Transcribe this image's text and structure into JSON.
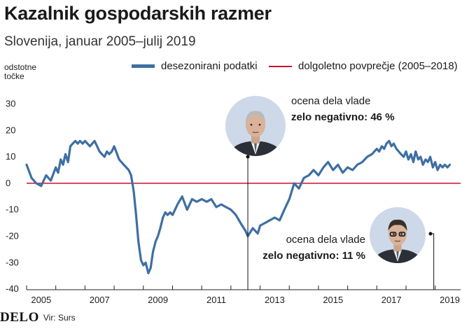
{
  "header": {
    "title": "Kazalnik gospodarskih razmer",
    "subtitle": "Slovenija, januar 2005–julij 2019",
    "unit_line1": "odstotne",
    "unit_line2": "točke"
  },
  "footer": {
    "logo": "DELO",
    "source": "Vir: Surs"
  },
  "colors": {
    "series": "#3e6fa3",
    "average": "#c8102e",
    "axis": "#222222",
    "photo_bg": "#cdd9e8"
  },
  "annotations": [
    {
      "line1": "ocena dela vlade",
      "line2": "zelo negativno: 46 %",
      "year": 2012.58,
      "photo": "portrait-janez-jansa"
    },
    {
      "line1": "ocena dela vlade",
      "line2": "zelo negativno: 11 %",
      "year": 2018.95,
      "photo": "portrait-marjan-sarec"
    }
  ],
  "chart_data": {
    "type": "line",
    "title": "Kazalnik gospodarskih razmer",
    "subtitle": "Slovenija, januar 2005–julij 2019",
    "ylabel": "odstotne točke",
    "ylim": [
      -45,
      37
    ],
    "xlim": [
      2005.0,
      2019.75
    ],
    "yticks": [
      30,
      20,
      10,
      0,
      -10,
      -20,
      -30,
      -40
    ],
    "xticks": [
      "2005",
      "2007",
      "2009",
      "2011",
      "2013",
      "2015",
      "2017",
      "2019"
    ],
    "legend": [
      {
        "name": "desezonirani podatki",
        "kind": "line"
      },
      {
        "name": "dolgoletno povprečje (2005–2018)",
        "kind": "thin-line"
      }
    ],
    "legend_position": "top-right",
    "grid": false,
    "average": 0,
    "series": [
      {
        "name": "desezonirani podatki",
        "x": [
          2005.0,
          2005.17,
          2005.33,
          2005.5,
          2005.67,
          2005.83,
          2006.0,
          2006.08,
          2006.17,
          2006.25,
          2006.33,
          2006.42,
          2006.5,
          2006.58,
          2006.67,
          2006.75,
          2006.83,
          2006.92,
          2007.0,
          2007.17,
          2007.33,
          2007.5,
          2007.58,
          2007.67,
          2007.75,
          2007.83,
          2007.92,
          2008.0,
          2008.17,
          2008.33,
          2008.5,
          2008.58,
          2008.67,
          2008.75,
          2008.83,
          2008.92,
          2009.0,
          2009.08,
          2009.17,
          2009.25,
          2009.33,
          2009.42,
          2009.5,
          2009.58,
          2009.67,
          2009.75,
          2009.83,
          2009.92,
          2010.0,
          2010.17,
          2010.33,
          2010.5,
          2010.67,
          2010.83,
          2011.0,
          2011.17,
          2011.33,
          2011.5,
          2011.67,
          2011.83,
          2012.0,
          2012.17,
          2012.33,
          2012.5,
          2012.58,
          2012.75,
          2012.92,
          2013.0,
          2013.17,
          2013.33,
          2013.5,
          2013.67,
          2013.83,
          2014.0,
          2014.17,
          2014.33,
          2014.5,
          2014.67,
          2014.83,
          2015.0,
          2015.17,
          2015.33,
          2015.5,
          2015.67,
          2015.83,
          2016.0,
          2016.17,
          2016.33,
          2016.5,
          2016.67,
          2016.83,
          2017.0,
          2017.08,
          2017.17,
          2017.25,
          2017.33,
          2017.42,
          2017.5,
          2017.58,
          2017.67,
          2017.75,
          2017.83,
          2017.92,
          2018.0,
          2018.08,
          2018.17,
          2018.25,
          2018.33,
          2018.42,
          2018.5,
          2018.58,
          2018.67,
          2018.75,
          2018.83,
          2018.92,
          2019.0,
          2019.08,
          2019.17,
          2019.25,
          2019.33,
          2019.42,
          2019.5
        ],
        "y": [
          7,
          2,
          0,
          -1,
          3,
          1,
          6,
          4,
          9,
          7,
          11,
          8,
          14,
          15,
          16,
          15,
          16,
          15,
          16,
          14,
          16,
          12,
          11,
          10,
          12,
          11,
          12,
          14,
          9,
          7,
          5,
          3,
          -3,
          -12,
          -22,
          -29,
          -31,
          -30,
          -34,
          -32,
          -26,
          -22,
          -20,
          -17,
          -13,
          -11,
          -12,
          -11,
          -12,
          -8,
          -5,
          -10,
          -6,
          -7,
          -6,
          -7,
          -6,
          -9,
          -8,
          -9,
          -10,
          -12,
          -15,
          -18,
          -20,
          -17,
          -19,
          -16,
          -15,
          -14,
          -13,
          -14,
          -10,
          -6,
          0,
          -2,
          2,
          3,
          5,
          3,
          6,
          8,
          5,
          7,
          4,
          6,
          5,
          7,
          8,
          10,
          11,
          13,
          12,
          14,
          13,
          15,
          16,
          14,
          15,
          13,
          12,
          11,
          10,
          12,
          9,
          11,
          8,
          12,
          9,
          10,
          7,
          9,
          8,
          10,
          6,
          8,
          5,
          7,
          6,
          7,
          6,
          7
        ]
      }
    ]
  }
}
